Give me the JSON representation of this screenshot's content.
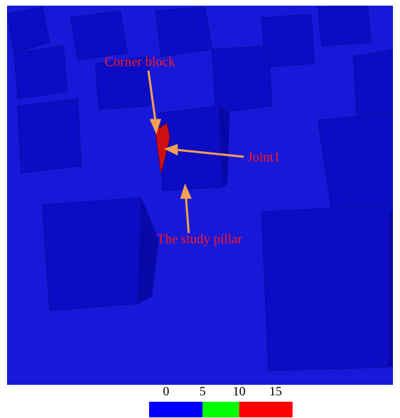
{
  "figure": {
    "annotations": [
      {
        "label": "Corner block"
      },
      {
        "label": "Joint1"
      },
      {
        "label": "The study pillar"
      }
    ],
    "colorbar": {
      "ticks": [
        0,
        5,
        10,
        15
      ],
      "colors": [
        "#0000ff",
        "#00ff00",
        "#ff0000"
      ]
    }
  }
}
